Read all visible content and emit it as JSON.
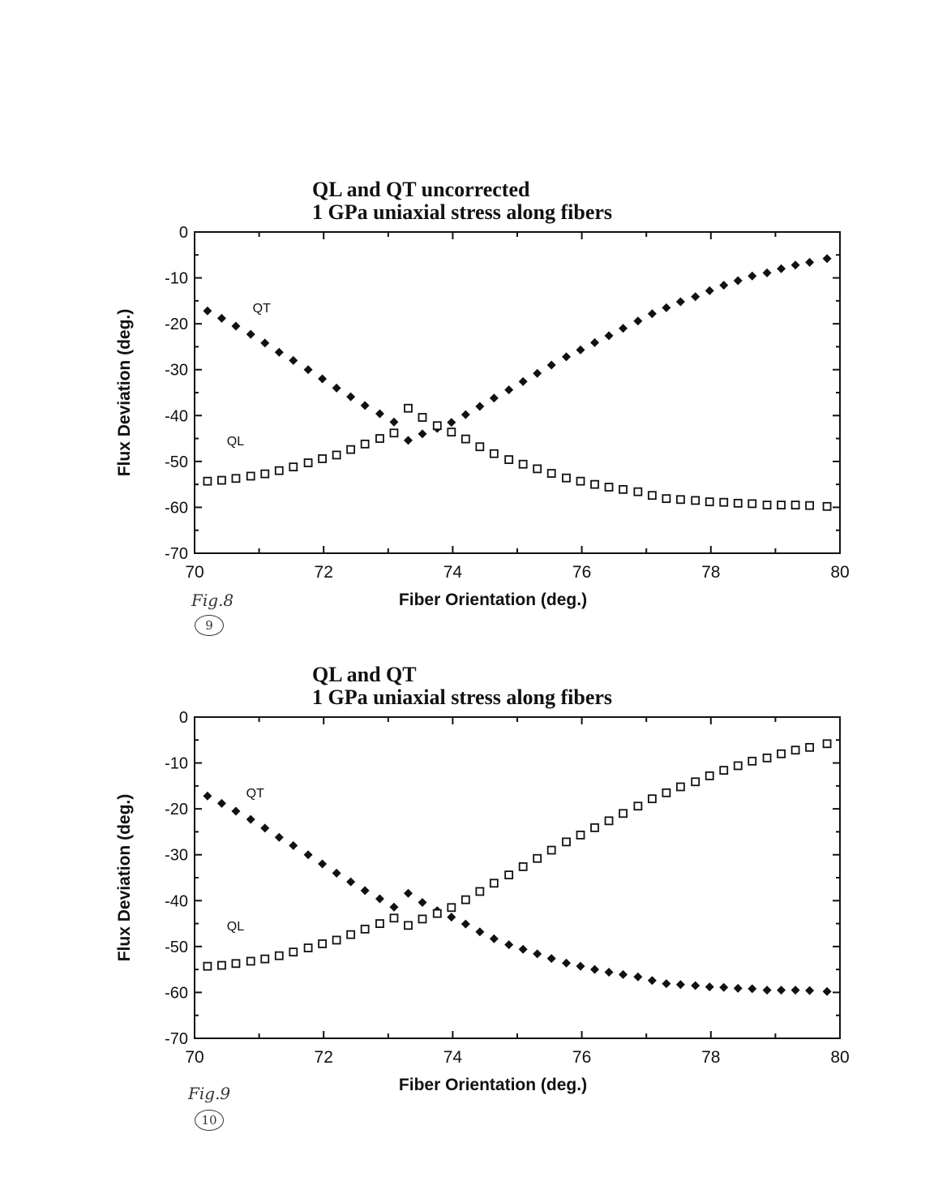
{
  "charts": [
    {
      "title_line1": "QL and QT uncorrected",
      "title_line2": "1 GPa uniaxial stress along fibers",
      "xlabel": "Fiber Orientation (deg.)",
      "ylabel": "Flux  Deviation  (deg.)",
      "annotations": {
        "qt": "QT",
        "ql": "QL"
      },
      "handwritten": {
        "fig": "Fig.8",
        "page": "9"
      }
    },
    {
      "title_line1": "QL and QT",
      "title_line2": "1 GPa uniaxial stress along fibers",
      "xlabel": "Fiber Orientation (deg.)",
      "ylabel": "Flux  Deviation  (deg.)",
      "annotations": {
        "qt": "QT",
        "ql": "QL"
      },
      "handwritten": {
        "fig": "Fig.9",
        "page": "10"
      }
    }
  ],
  "chart_data": [
    {
      "type": "scatter",
      "title": "QL and QT uncorrected\n1 GPa uniaxial stress along fibers",
      "xlabel": "Fiber Orientation (deg.)",
      "ylabel": "Flux  Deviation  (deg.)",
      "xlim": [
        70,
        80
      ],
      "ylim": [
        -70,
        0
      ],
      "xticks": [
        "70",
        "72",
        "74",
        "76",
        "78",
        "80"
      ],
      "yticks": [
        "0",
        "-10",
        "-20",
        "-30",
        "-40",
        "-50",
        "-60",
        "-70"
      ],
      "x": [
        70.2,
        70.42,
        70.64,
        70.87,
        71.09,
        71.31,
        71.53,
        71.76,
        71.98,
        72.2,
        72.42,
        72.64,
        72.87,
        73.09,
        73.31,
        73.53,
        73.76,
        73.98,
        74.2,
        74.42,
        74.64,
        74.87,
        75.09,
        75.31,
        75.53,
        75.76,
        75.98,
        76.2,
        76.42,
        76.64,
        76.87,
        77.09,
        77.31,
        77.53,
        77.76,
        77.98,
        78.2,
        78.42,
        78.64,
        78.87,
        79.09,
        79.31,
        79.53,
        79.8
      ],
      "series": [
        {
          "name": "QT",
          "marker": "filled-diamond",
          "values": [
            -17.2,
            -18.8,
            -20.5,
            -22.3,
            -24.2,
            -26.2,
            -28.0,
            -30.0,
            -32.0,
            -34.0,
            -35.9,
            -37.8,
            -39.6,
            -41.4,
            -45.4,
            -44.0,
            -42.8,
            -41.5,
            -39.8,
            -38.0,
            -36.2,
            -34.4,
            -32.6,
            -30.8,
            -29.0,
            -27.2,
            -25.7,
            -24.1,
            -22.6,
            -21.0,
            -19.4,
            -17.8,
            -16.5,
            -15.2,
            -14.1,
            -12.8,
            -11.6,
            -10.6,
            -9.6,
            -8.9,
            -8.0,
            -7.2,
            -6.6,
            -5.8
          ]
        },
        {
          "name": "QL",
          "marker": "open-square",
          "values": [
            -54.3,
            -54.1,
            -53.7,
            -53.2,
            -52.7,
            -52.0,
            -51.2,
            -50.3,
            -49.4,
            -48.6,
            -47.4,
            -46.2,
            -45.0,
            -43.8,
            -38.4,
            -40.4,
            -42.2,
            -43.6,
            -45.1,
            -46.8,
            -48.3,
            -49.6,
            -50.6,
            -51.6,
            -52.6,
            -53.6,
            -54.3,
            -55.0,
            -55.6,
            -56.1,
            -56.6,
            -57.4,
            -58.1,
            -58.3,
            -58.5,
            -58.8,
            -58.9,
            -59.1,
            -59.2,
            -59.5,
            -59.5,
            -59.5,
            -59.6,
            -59.8
          ]
        }
      ],
      "annotations": [
        {
          "text": "QT",
          "x": 70.9,
          "y": -17.5
        },
        {
          "text": "QL",
          "x": 70.5,
          "y": -46.5
        }
      ],
      "grid": false,
      "legend": "none"
    },
    {
      "type": "scatter",
      "title": "QL and QT\n1 GPa uniaxial stress along fibers",
      "xlabel": "Fiber Orientation (deg.)",
      "ylabel": "Flux  Deviation  (deg.)",
      "xlim": [
        70,
        80
      ],
      "ylim": [
        -70,
        0
      ],
      "xticks": [
        "70",
        "72",
        "74",
        "76",
        "78",
        "80"
      ],
      "yticks": [
        "0",
        "-10",
        "-20",
        "-30",
        "-40",
        "-50",
        "-60",
        "-70"
      ],
      "x": [
        70.2,
        70.42,
        70.64,
        70.87,
        71.09,
        71.31,
        71.53,
        71.76,
        71.98,
        72.2,
        72.42,
        72.64,
        72.87,
        73.09,
        73.31,
        73.53,
        73.76,
        73.98,
        74.2,
        74.42,
        74.64,
        74.87,
        75.09,
        75.31,
        75.53,
        75.76,
        75.98,
        76.2,
        76.42,
        76.64,
        76.87,
        77.09,
        77.31,
        77.53,
        77.76,
        77.98,
        78.2,
        78.42,
        78.64,
        78.87,
        79.09,
        79.31,
        79.53,
        79.8
      ],
      "series": [
        {
          "name": "QT",
          "marker": "filled-diamond",
          "values": [
            -17.2,
            -18.8,
            -20.5,
            -22.3,
            -24.2,
            -26.2,
            -28.0,
            -30.0,
            -32.0,
            -34.0,
            -35.9,
            -37.8,
            -39.6,
            -41.4,
            -38.4,
            -40.4,
            -42.2,
            -43.6,
            -45.1,
            -46.8,
            -48.3,
            -49.6,
            -50.6,
            -51.6,
            -52.6,
            -53.6,
            -54.3,
            -55.0,
            -55.6,
            -56.1,
            -56.6,
            -57.4,
            -58.1,
            -58.3,
            -58.5,
            -58.8,
            -58.9,
            -59.1,
            -59.2,
            -59.5,
            -59.5,
            -59.5,
            -59.6,
            -59.8
          ]
        },
        {
          "name": "QL",
          "marker": "open-square",
          "values": [
            -54.3,
            -54.1,
            -53.7,
            -53.2,
            -52.7,
            -52.0,
            -51.2,
            -50.3,
            -49.4,
            -48.6,
            -47.4,
            -46.2,
            -45.0,
            -43.8,
            -45.4,
            -44.0,
            -42.8,
            -41.5,
            -39.8,
            -38.0,
            -36.2,
            -34.4,
            -32.6,
            -30.8,
            -29.0,
            -27.2,
            -25.7,
            -24.1,
            -22.6,
            -21.0,
            -19.4,
            -17.8,
            -16.5,
            -15.2,
            -14.1,
            -12.8,
            -11.6,
            -10.6,
            -9.6,
            -8.9,
            -8.0,
            -7.2,
            -6.6,
            -5.8
          ]
        }
      ],
      "annotations": [
        {
          "text": "QT",
          "x": 70.8,
          "y": -17.5
        },
        {
          "text": "QL",
          "x": 70.5,
          "y": -46.5
        }
      ],
      "grid": false,
      "legend": "none"
    }
  ]
}
